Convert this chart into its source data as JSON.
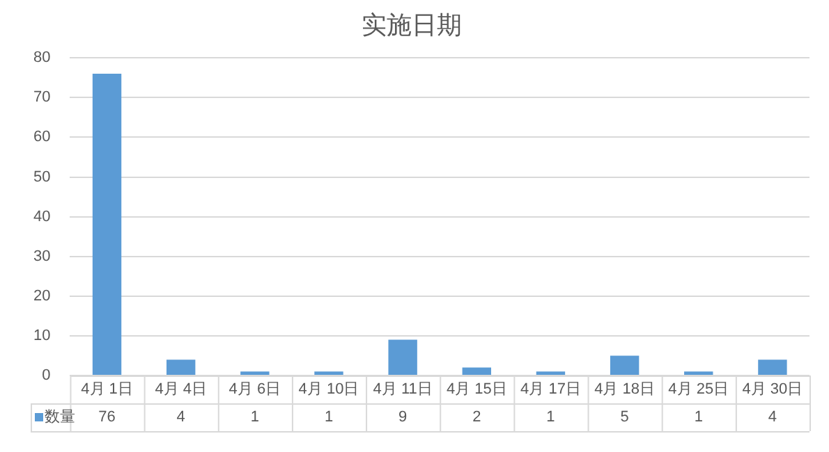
{
  "chart_data": {
    "type": "bar",
    "title": "实施日期",
    "categories": [
      "4月 1日",
      "4月 4日",
      "4月 6日",
      "4月 10日",
      "4月 11日",
      "4月 15日",
      "4月 17日",
      "4月 18日",
      "4月 25日",
      "4月 30日"
    ],
    "series": [
      {
        "name": "数量",
        "color": "#5b9bd5",
        "values": [
          76,
          4,
          1,
          1,
          9,
          2,
          1,
          5,
          1,
          4
        ]
      }
    ],
    "ylim": [
      0,
      80
    ],
    "yticks": [
      0,
      10,
      20,
      30,
      40,
      50,
      60,
      70,
      80
    ],
    "grid": "y",
    "data_labels": true
  }
}
